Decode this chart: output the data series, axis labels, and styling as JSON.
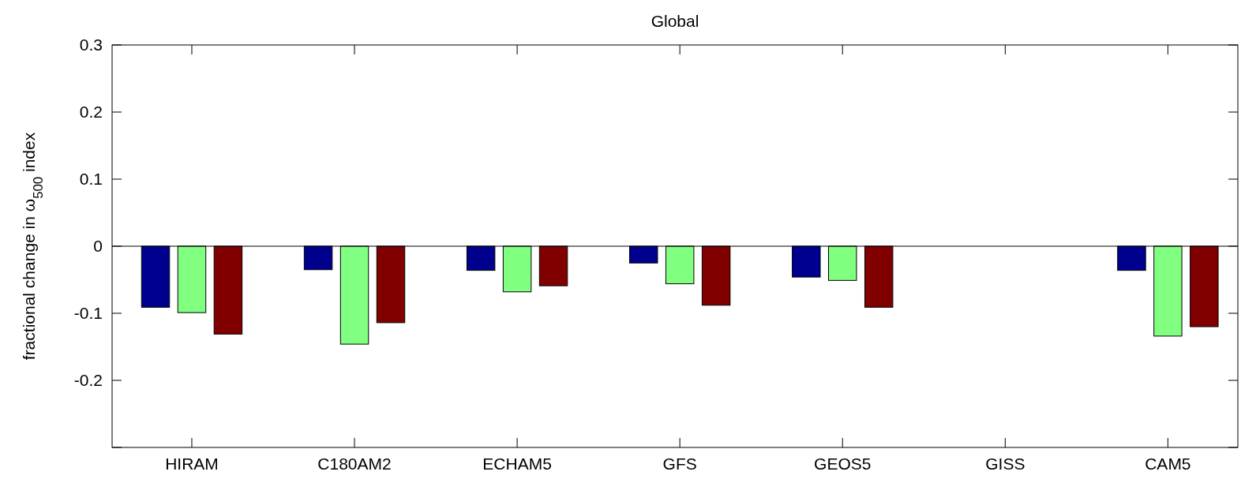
{
  "chart_data": {
    "type": "bar",
    "title": "Global",
    "ylabel": "fractional change in ω$_{500}$ index",
    "categories": [
      "HIRAM",
      "C180AM2",
      "ECHAM5",
      "GFS",
      "GEOS5",
      "GISS",
      "CAM5"
    ],
    "series": [
      {
        "color": "#00008f",
        "values": [
          -0.091,
          -0.035,
          -0.036,
          -0.025,
          -0.046,
          null,
          -0.036
        ]
      },
      {
        "color": "#80ff80",
        "values": [
          -0.099,
          -0.146,
          -0.068,
          -0.056,
          -0.051,
          null,
          -0.134
        ]
      },
      {
        "color": "#800000",
        "values": [
          -0.131,
          -0.114,
          -0.059,
          -0.088,
          -0.091,
          null,
          -0.12
        ]
      }
    ],
    "ylim": [
      -0.3,
      0.3
    ],
    "yticks": [
      {
        "value": -0.3,
        "label": null
      },
      -0.2,
      -0.1,
      0,
      0.1,
      0.2,
      0.3
    ],
    "ref_lines": [
      {
        "axis": "y",
        "value": 0,
        "color": "#000000"
      }
    ]
  }
}
